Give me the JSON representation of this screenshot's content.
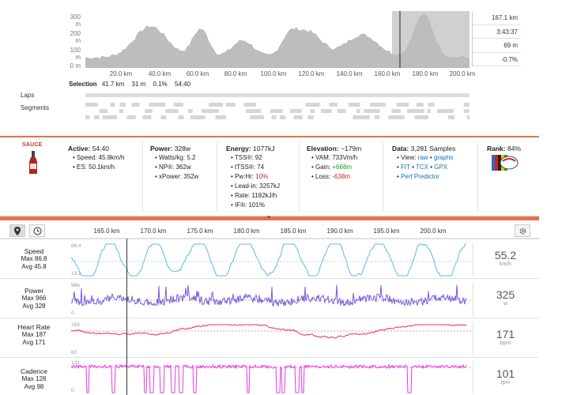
{
  "elevation": {
    "yticks": [
      "300 m",
      "200 m",
      "100 m",
      "0 m"
    ],
    "xticks": [
      "20.0 km",
      "40.0 km",
      "60.0 km",
      "80.0 km",
      "100.0 km",
      "120.0 km",
      "140.0 km",
      "160.0 km",
      "180.0 km",
      "200.0 km"
    ],
    "stats": [
      "167.1 km",
      "3:43:37",
      "69 m",
      "-0.7%"
    ],
    "selection_label": "Selection",
    "selection_values": [
      "41.7 km",
      "31 m",
      "0.1%",
      "54:40"
    ],
    "laps_label": "Laps",
    "segments_label": "Segments",
    "selection_range_km": [
      160,
      200
    ]
  },
  "info": {
    "active": {
      "label": "Active:",
      "value": "54:40",
      "items": [
        "Speed: 45.8km/h",
        "ES: 50.1km/h"
      ]
    },
    "power": {
      "label": "Power:",
      "value": "328w",
      "items": [
        "Watts/kg: 5.2",
        "NP®: 362w",
        "xPower: 352w"
      ]
    },
    "energy": {
      "label": "Energy:",
      "value": "1077kJ",
      "items": [
        "TSS®: 92",
        "tTSS®: 74",
        "Pw:Hr: ",
        "Lead-in: 3257kJ",
        "Rate: 1182kJ/h",
        "IF®: 101%"
      ],
      "pwhr_value": "10%"
    },
    "elevation": {
      "label": "Elevation:",
      "value": "~179m",
      "vam": "VAM: 733Vm/h",
      "gain_label": "Gain: ",
      "gain_value": "+668m",
      "loss_label": "Loss: ",
      "loss_value": "-638m"
    },
    "data": {
      "label": "Data:",
      "value": "3,281 Samples",
      "view_label": "View: ",
      "view_raw": "raw",
      "view_sep": " • ",
      "view_graphs": "graphs",
      "fit": "FIT",
      "tcx": "TCX",
      "gpx": "GPX",
      "perf": "Perf Predictor"
    },
    "rank": {
      "label": "Rank:",
      "value": "84%"
    },
    "sauce_logo": "SAUCE"
  },
  "streams": {
    "dist_ticks": [
      "165.0 km",
      "170.0 km",
      "175.0 km",
      "180.0 km",
      "185.0 km",
      "190.0 km",
      "195.0 km",
      "200.0 km"
    ],
    "rows": [
      {
        "name": "Speed",
        "max": "Max 86.8",
        "avg": "Avg 45.8",
        "ytop": "88.4",
        "ybot": "13.2",
        "value": "55.2",
        "unit": "km/h",
        "color": "#5bbce4"
      },
      {
        "name": "Power",
        "max": "Max 966",
        "avg": "Avg 328",
        "ytop": "966",
        "ybot": "0",
        "value": "325",
        "unit": "w",
        "color": "#7b5bd6"
      },
      {
        "name": "Heart Rate",
        "max": "Max 187",
        "avg": "Avg 171",
        "ytop": "189",
        "ybot": "60",
        "value": "171",
        "unit": "bpm",
        "color": "#e0306a"
      },
      {
        "name": "Cadence",
        "max": "Max 128",
        "avg": "Avg 98",
        "ytop": "131",
        "ybot": "0",
        "value": "101",
        "unit": "rpm",
        "color": "#e23be0"
      }
    ]
  }
}
